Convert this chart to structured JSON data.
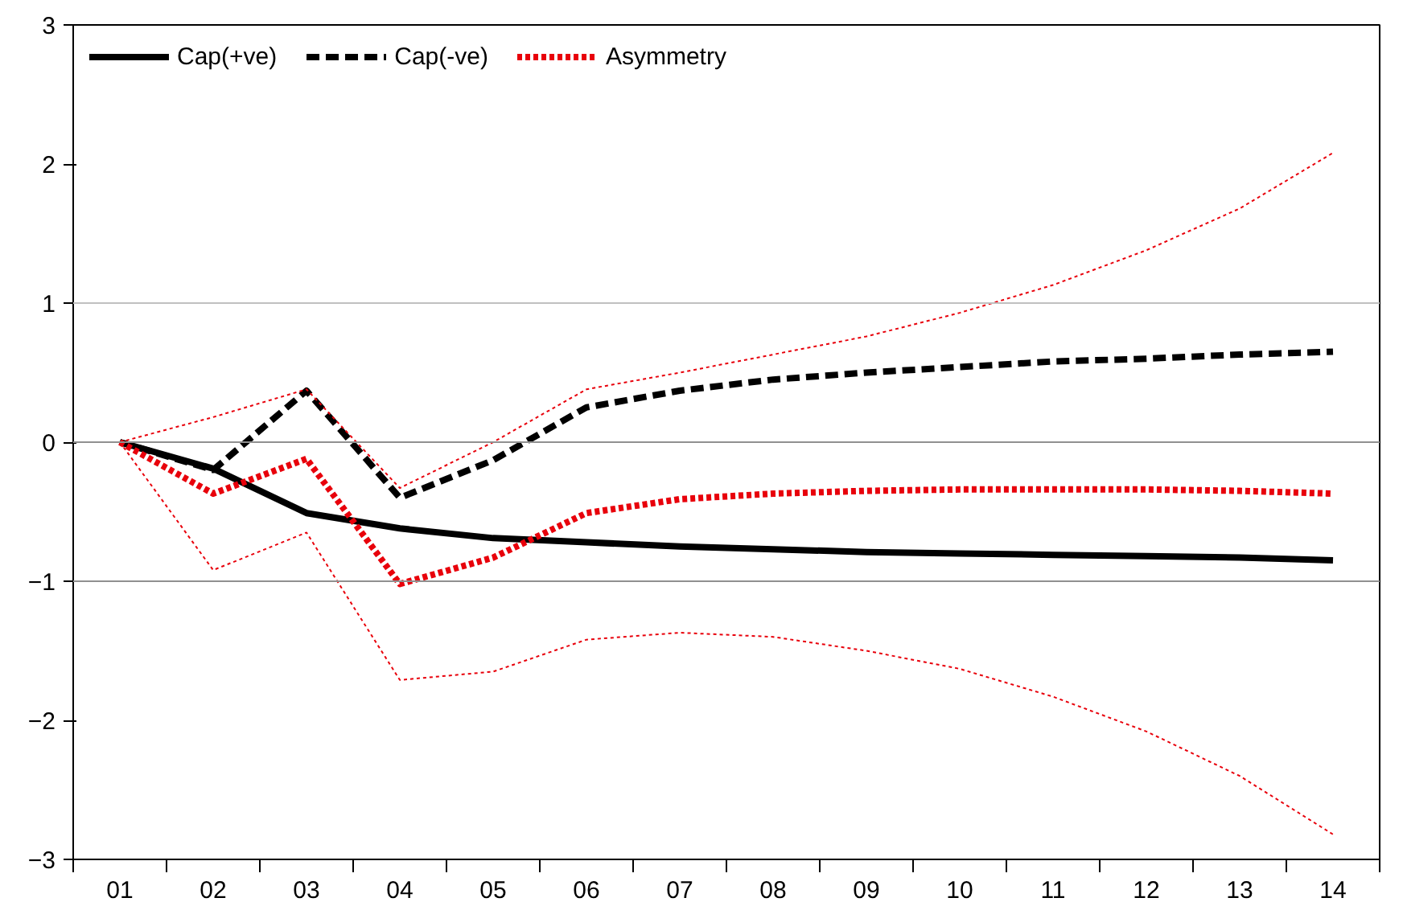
{
  "chart_data": {
    "type": "line",
    "categories": [
      "01",
      "02",
      "03",
      "04",
      "05",
      "06",
      "07",
      "08",
      "09",
      "10",
      "11",
      "12",
      "13",
      "14"
    ],
    "series": [
      {
        "name": "Cap(+ve)",
        "color": "#000000",
        "line_style": "solid",
        "values": [
          0,
          -0.19,
          -0.51,
          -0.62,
          -0.69,
          -0.72,
          -0.75,
          -0.77,
          -0.79,
          -0.8,
          -0.81,
          -0.82,
          -0.83,
          -0.85
        ]
      },
      {
        "name": "Cap(-ve)",
        "color": "#000000",
        "line_style": "dashed",
        "values": [
          0,
          -0.2,
          0.37,
          -0.4,
          -0.13,
          0.25,
          0.37,
          0.45,
          0.5,
          0.54,
          0.58,
          0.6,
          0.63,
          0.65
        ]
      },
      {
        "name": "Asymmetry",
        "color": "#e8000b",
        "line_style": "dotted",
        "values": [
          0,
          -0.37,
          -0.12,
          -1.02,
          -0.83,
          -0.51,
          -0.41,
          -0.37,
          -0.35,
          -0.34,
          -0.34,
          -0.34,
          -0.35,
          -0.37
        ]
      },
      {
        "color": "#e8000b",
        "line_style": "dotted",
        "values": [
          0,
          -0.92,
          -0.65,
          -1.71,
          -1.65,
          -1.42,
          -1.37,
          -1.4,
          -1.5,
          -1.63,
          -1.83,
          -2.08,
          -2.4,
          -2.82
        ]
      },
      {
        "color": "#e8000b",
        "line_style": "dotted",
        "values": [
          0,
          0.18,
          0.38,
          -0.33,
          0.0,
          0.38,
          0.5,
          0.63,
          0.76,
          0.93,
          1.13,
          1.38,
          1.68,
          2.08
        ]
      }
    ],
    "ylim": [
      -3,
      3
    ],
    "yticks": [
      -3,
      -2,
      -1,
      0,
      1,
      2,
      3
    ],
    "ref_lines": [
      {
        "axis": "y",
        "value": 1,
        "color": "#c0c0c0"
      },
      {
        "axis": "y",
        "value": 0,
        "color": "#909090"
      },
      {
        "axis": "y",
        "value": -1,
        "color": "#909090"
      }
    ],
    "grid": false,
    "legend": "top left",
    "marker": "none"
  }
}
